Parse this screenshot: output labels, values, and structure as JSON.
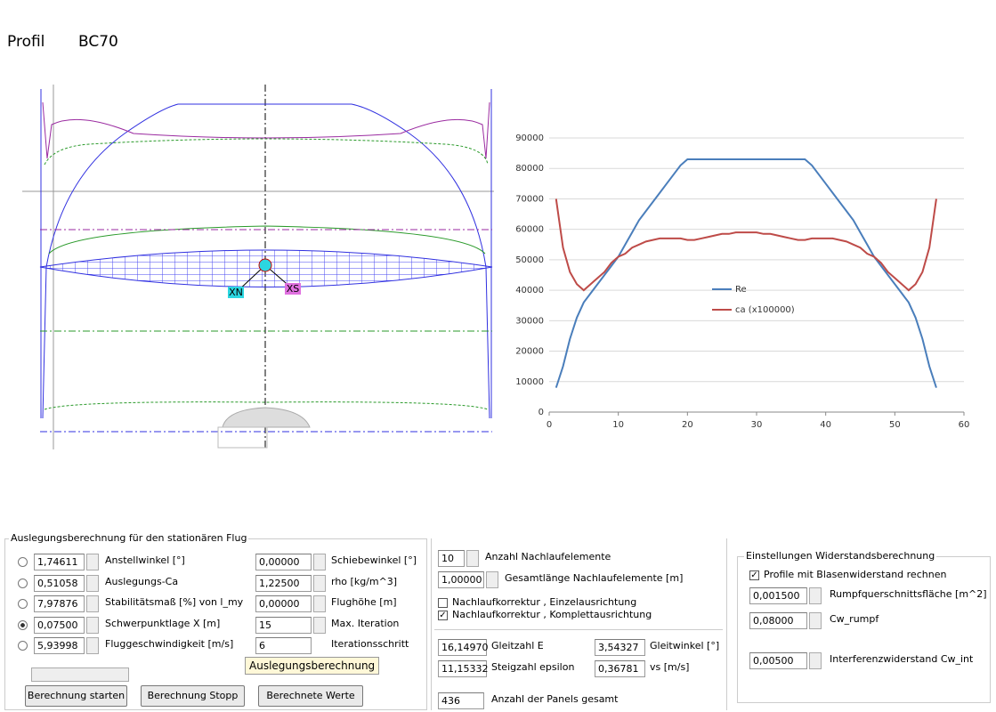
{
  "header": {
    "label": "Profil",
    "name": "BC70"
  },
  "planform": {
    "labels": [
      "XN",
      "XS"
    ]
  },
  "chart_data": {
    "type": "line",
    "x": [
      1,
      2,
      3,
      4,
      5,
      6,
      7,
      8,
      9,
      10,
      11,
      12,
      13,
      14,
      15,
      16,
      17,
      18,
      19,
      20,
      21,
      22,
      23,
      24,
      25,
      26,
      27,
      28,
      29,
      30,
      31,
      32,
      33,
      34,
      35,
      36,
      37,
      38,
      39,
      40,
      41,
      42,
      43,
      44,
      45,
      46,
      47,
      48,
      49,
      50,
      51,
      52,
      53,
      54,
      55,
      56
    ],
    "series": [
      {
        "name": "Re",
        "color": "#4a7ebb",
        "values": [
          8000,
          15000,
          24000,
          31000,
          36000,
          39000,
          42000,
          45000,
          48000,
          51000,
          55000,
          59000,
          63000,
          66000,
          69000,
          72000,
          75000,
          78000,
          81000,
          83000,
          83000,
          83000,
          83000,
          83000,
          83000,
          83000,
          83000,
          83000,
          83000,
          83000,
          83000,
          83000,
          83000,
          83000,
          83000,
          83000,
          83000,
          81000,
          78000,
          75000,
          72000,
          69000,
          66000,
          63000,
          59000,
          55000,
          51000,
          48000,
          45000,
          42000,
          39000,
          36000,
          31000,
          24000,
          15000,
          8000
        ]
      },
      {
        "name": "ca (x100000)",
        "color": "#be4b48",
        "values": [
          70000,
          54000,
          46000,
          42000,
          40000,
          42000,
          44000,
          46000,
          49000,
          51000,
          52000,
          54000,
          55000,
          56000,
          56500,
          57000,
          57000,
          57000,
          57000,
          56500,
          56500,
          57000,
          57500,
          58000,
          58500,
          58500,
          59000,
          59000,
          59000,
          59000,
          58500,
          58500,
          58000,
          57500,
          57000,
          56500,
          56500,
          57000,
          57000,
          57000,
          57000,
          56500,
          56000,
          55000,
          54000,
          52000,
          51000,
          49000,
          46000,
          44000,
          42000,
          40000,
          42000,
          46000,
          54000,
          70000
        ]
      }
    ],
    "xlim": [
      0,
      60
    ],
    "xticks": [
      0,
      10,
      20,
      30,
      40,
      50,
      60
    ],
    "ylim": [
      0,
      90000
    ],
    "yticks": [
      0,
      10000,
      20000,
      30000,
      40000,
      50000,
      60000,
      70000,
      80000,
      90000
    ],
    "grid": true
  },
  "form_left": {
    "title": "Auslegungsberechnung für den stationären Flug",
    "selected": 3,
    "rows": [
      {
        "value": "1,74611",
        "label": "Anstellwinkel [°]"
      },
      {
        "value": "0,51058",
        "label": "Auslegungs-Ca"
      },
      {
        "value": "7,97876",
        "label": "Stabilitätsmaß [%] von l_my"
      },
      {
        "value": "0,07500",
        "label": "Schwerpunktlage X [m]"
      },
      {
        "value": "5,93998",
        "label": "Fluggeschwindigkeit [m/s]"
      }
    ],
    "rows_right": [
      {
        "value": "0,00000",
        "label": "Schiebewinkel [°]"
      },
      {
        "value": "1,22500",
        "label": "rho [kg/m^3]"
      },
      {
        "value": "0,00000",
        "label": "Flughöhe [m]"
      },
      {
        "value": "15",
        "label": "Max. Iteration"
      },
      {
        "value": "6",
        "label": "Iterationsschritt"
      }
    ],
    "tooltip": "Auslegungsberechnung",
    "buttons": [
      "Berechnung starten",
      "Berechnung Stopp",
      "Berechnete Werte"
    ]
  },
  "form_mid": {
    "fields": [
      {
        "value": "10",
        "label": "Anzahl Nachlaufelemente"
      },
      {
        "value": "1,00000",
        "label": "Gesamtlänge Nachlaufelemente [m]"
      }
    ],
    "checks": [
      {
        "label": "Nachlaufkorrektur , Einzelausrichtung",
        "checked": false
      },
      {
        "label": "Nachlaufkorrektur , Komplettausrichtung",
        "checked": true
      }
    ],
    "results": [
      {
        "value": "16,14970",
        "label": "Gleitzahl E"
      },
      {
        "value": "3,54327",
        "label": "Gleitwinkel [°]"
      },
      {
        "value": "11,15332",
        "label": "Steigzahl epsilon"
      },
      {
        "value": "0,36781",
        "label": "vs [m/s]"
      },
      {
        "value": "436",
        "label": "Anzahl der Panels gesamt"
      }
    ]
  },
  "form_right": {
    "title": "Einstellungen Widerstandsberechnung",
    "check": {
      "label": "Profile mit Blasenwiderstand rechnen",
      "checked": true
    },
    "fields": [
      {
        "value": "0,001500",
        "label": "Rumpfquerschnittsfläche [m^2]"
      },
      {
        "value": "0,08000",
        "label": "Cw_rumpf"
      },
      {
        "value": "0,00500",
        "label": "Interferenzwiderstand Cw_int"
      }
    ]
  }
}
